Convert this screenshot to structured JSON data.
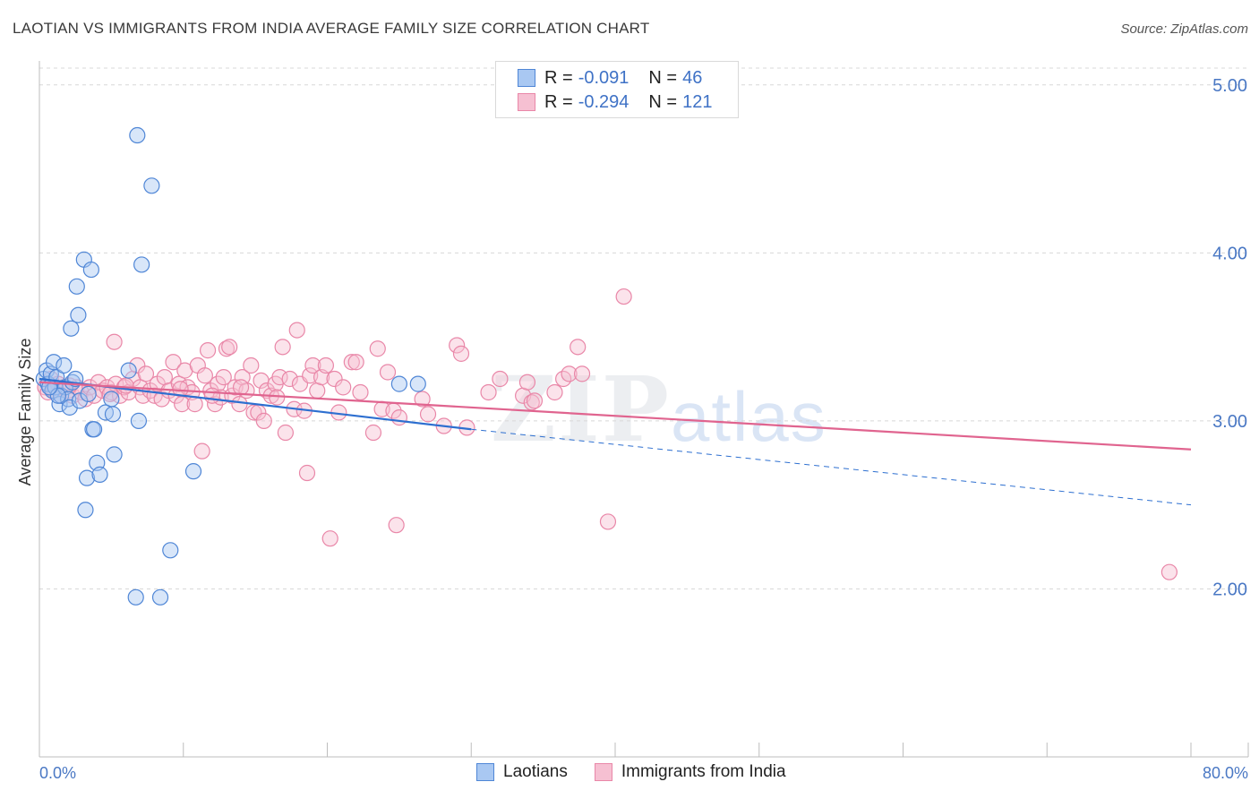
{
  "title": "LAOTIAN VS IMMIGRANTS FROM INDIA AVERAGE FAMILY SIZE CORRELATION CHART",
  "source": "Source: ZipAtlas.com",
  "watermark": {
    "zip": "ZIP",
    "atlas": "atlas"
  },
  "legend": {
    "rows": [
      {
        "r_label": "R =",
        "r_value": "-0.091",
        "n_label": "N =",
        "n_value": "46"
      },
      {
        "r_label": "R =",
        "r_value": "-0.294",
        "n_label": "N =",
        "n_value": "121"
      }
    ]
  },
  "bottom_legend": [
    "Laotians",
    "Immigrants from India"
  ],
  "chart_data": {
    "type": "scatter",
    "title": "LAOTIAN VS IMMIGRANTS FROM INDIA AVERAGE FAMILY SIZE CORRELATION CHART",
    "xlabel": "",
    "ylabel": "Average Family Size",
    "xlim": [
      0,
      80
    ],
    "ylim": [
      1.0,
      5.1
    ],
    "x_tick_labels": [
      "0.0%",
      "80.0%"
    ],
    "y_ticks": [
      2.0,
      3.0,
      4.0,
      5.0
    ],
    "y_tick_labels": [
      "2.00",
      "3.00",
      "4.00",
      "5.00"
    ],
    "grid": "horizontal dashed",
    "legend_placement": "top-center",
    "colors": {
      "laotians_fill": "#a9c8f2",
      "laotians_stroke": "#4f86d6",
      "laotians_line": "#2d6fd0",
      "india_fill": "#f6c0d2",
      "india_stroke": "#e987a8",
      "india_line": "#e0648f"
    },
    "series": [
      {
        "name": "Laotians",
        "r": -0.091,
        "n": 46,
        "trend": {
          "x": [
            0,
            30
          ],
          "y": [
            3.25,
            2.95
          ],
          "dashed_to": [
            80,
            2.5
          ]
        },
        "points": [
          [
            0.3,
            3.25
          ],
          [
            0.5,
            3.3
          ],
          [
            0.6,
            3.22
          ],
          [
            0.8,
            3.28
          ],
          [
            0.9,
            3.18
          ],
          [
            1.0,
            3.35
          ],
          [
            1.1,
            3.2
          ],
          [
            1.2,
            3.26
          ],
          [
            1.4,
            3.1
          ],
          [
            1.5,
            3.15
          ],
          [
            1.7,
            3.33
          ],
          [
            1.8,
            3.2
          ],
          [
            2.0,
            3.13
          ],
          [
            2.1,
            3.08
          ],
          [
            2.3,
            3.23
          ],
          [
            2.5,
            3.25
          ],
          [
            2.2,
            3.55
          ],
          [
            2.6,
            3.8
          ],
          [
            2.7,
            3.63
          ],
          [
            2.8,
            3.12
          ],
          [
            3.1,
            3.96
          ],
          [
            3.6,
            3.9
          ],
          [
            3.2,
            2.47
          ],
          [
            3.3,
            2.66
          ],
          [
            3.7,
            2.95
          ],
          [
            3.8,
            2.95
          ],
          [
            4.0,
            2.75
          ],
          [
            4.2,
            2.68
          ],
          [
            4.6,
            3.05
          ],
          [
            5.0,
            3.13
          ],
          [
            5.1,
            3.04
          ],
          [
            5.2,
            2.8
          ],
          [
            6.2,
            3.3
          ],
          [
            6.8,
            4.7
          ],
          [
            6.9,
            3.0
          ],
          [
            7.1,
            3.93
          ],
          [
            7.8,
            4.4
          ],
          [
            6.7,
            1.95
          ],
          [
            8.4,
            1.95
          ],
          [
            9.1,
            2.23
          ],
          [
            10.7,
            2.7
          ],
          [
            25.0,
            3.22
          ],
          [
            26.3,
            3.22
          ],
          [
            3.4,
            3.16
          ],
          [
            1.3,
            3.15
          ],
          [
            0.7,
            3.2
          ]
        ]
      },
      {
        "name": "Immigrants from India",
        "r": -0.294,
        "n": 121,
        "trend": {
          "x": [
            0,
            80
          ],
          "y": [
            3.23,
            2.83
          ]
        },
        "points": [
          [
            0.4,
            3.2
          ],
          [
            0.6,
            3.17
          ],
          [
            0.8,
            3.25
          ],
          [
            1.0,
            3.18
          ],
          [
            1.3,
            3.22
          ],
          [
            1.5,
            3.15
          ],
          [
            1.7,
            3.2
          ],
          [
            2.0,
            3.18
          ],
          [
            2.3,
            3.15
          ],
          [
            2.6,
            3.2
          ],
          [
            2.9,
            3.17
          ],
          [
            3.2,
            3.13
          ],
          [
            3.5,
            3.2
          ],
          [
            3.8,
            3.15
          ],
          [
            4.1,
            3.23
          ],
          [
            4.4,
            3.18
          ],
          [
            4.7,
            3.2
          ],
          [
            5.0,
            3.17
          ],
          [
            5.3,
            3.22
          ],
          [
            5.2,
            3.47
          ],
          [
            5.6,
            3.15
          ],
          [
            5.9,
            3.2
          ],
          [
            6.2,
            3.17
          ],
          [
            6.5,
            3.25
          ],
          [
            6.8,
            3.33
          ],
          [
            7.0,
            3.2
          ],
          [
            7.2,
            3.15
          ],
          [
            7.4,
            3.28
          ],
          [
            7.7,
            3.18
          ],
          [
            8.0,
            3.15
          ],
          [
            8.2,
            3.22
          ],
          [
            8.5,
            3.13
          ],
          [
            8.7,
            3.26
          ],
          [
            9.0,
            3.18
          ],
          [
            9.3,
            3.35
          ],
          [
            9.5,
            3.15
          ],
          [
            9.7,
            3.22
          ],
          [
            9.9,
            3.1
          ],
          [
            10.1,
            3.3
          ],
          [
            10.3,
            3.2
          ],
          [
            10.6,
            3.17
          ],
          [
            10.8,
            3.1
          ],
          [
            11.0,
            3.33
          ],
          [
            11.3,
            2.82
          ],
          [
            11.5,
            3.27
          ],
          [
            11.7,
            3.42
          ],
          [
            11.9,
            3.18
          ],
          [
            12.2,
            3.1
          ],
          [
            12.4,
            3.22
          ],
          [
            12.6,
            3.14
          ],
          [
            12.8,
            3.26
          ],
          [
            13.0,
            3.43
          ],
          [
            13.2,
            3.44
          ],
          [
            13.4,
            3.15
          ],
          [
            13.6,
            3.2
          ],
          [
            13.9,
            3.1
          ],
          [
            14.1,
            3.26
          ],
          [
            14.4,
            3.18
          ],
          [
            14.7,
            3.33
          ],
          [
            14.9,
            3.05
          ],
          [
            15.2,
            3.05
          ],
          [
            15.4,
            3.24
          ],
          [
            15.6,
            3.0
          ],
          [
            15.8,
            3.18
          ],
          [
            16.1,
            3.15
          ],
          [
            16.4,
            3.22
          ],
          [
            16.7,
            3.26
          ],
          [
            16.9,
            3.44
          ],
          [
            17.1,
            2.93
          ],
          [
            17.4,
            3.25
          ],
          [
            17.7,
            3.07
          ],
          [
            17.9,
            3.54
          ],
          [
            18.1,
            3.22
          ],
          [
            18.4,
            3.06
          ],
          [
            18.6,
            2.69
          ],
          [
            18.8,
            3.27
          ],
          [
            19.0,
            3.33
          ],
          [
            19.3,
            3.18
          ],
          [
            19.6,
            3.26
          ],
          [
            19.9,
            3.33
          ],
          [
            20.2,
            2.3
          ],
          [
            20.5,
            3.25
          ],
          [
            20.8,
            3.05
          ],
          [
            21.1,
            3.2
          ],
          [
            21.7,
            3.35
          ],
          [
            22.0,
            3.35
          ],
          [
            22.3,
            3.17
          ],
          [
            23.2,
            2.93
          ],
          [
            23.5,
            3.43
          ],
          [
            23.8,
            3.07
          ],
          [
            24.2,
            3.29
          ],
          [
            24.6,
            3.06
          ],
          [
            24.8,
            2.38
          ],
          [
            25.0,
            3.02
          ],
          [
            26.6,
            3.13
          ],
          [
            27.0,
            3.04
          ],
          [
            28.1,
            2.97
          ],
          [
            29.0,
            3.45
          ],
          [
            29.3,
            3.4
          ],
          [
            29.7,
            2.96
          ],
          [
            31.2,
            3.17
          ],
          [
            32.0,
            3.25
          ],
          [
            33.6,
            3.15
          ],
          [
            33.9,
            3.23
          ],
          [
            34.2,
            3.11
          ],
          [
            34.4,
            3.12
          ],
          [
            35.8,
            3.17
          ],
          [
            36.4,
            3.25
          ],
          [
            36.8,
            3.28
          ],
          [
            37.4,
            3.44
          ],
          [
            37.7,
            3.28
          ],
          [
            39.5,
            2.4
          ],
          [
            40.6,
            3.74
          ],
          [
            78.5,
            2.1
          ],
          [
            2.1,
            3.21
          ],
          [
            4.9,
            3.16
          ],
          [
            6.0,
            3.21
          ],
          [
            9.8,
            3.19
          ],
          [
            12.0,
            3.15
          ],
          [
            14.0,
            3.2
          ],
          [
            16.5,
            3.14
          ]
        ]
      }
    ]
  }
}
